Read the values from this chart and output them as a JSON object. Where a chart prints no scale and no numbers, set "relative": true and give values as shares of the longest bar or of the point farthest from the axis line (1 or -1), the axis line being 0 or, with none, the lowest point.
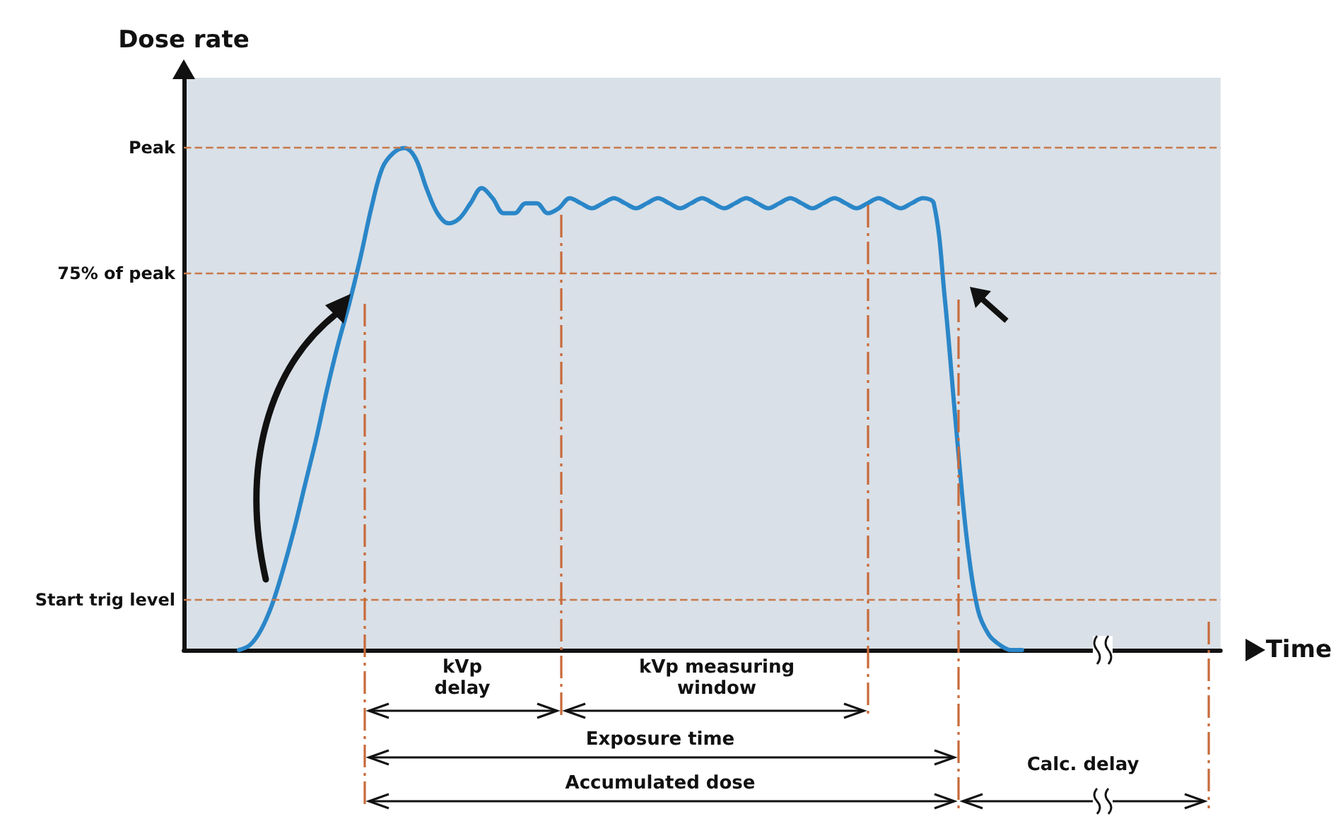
{
  "chart_data": {
    "type": "line",
    "relative": true,
    "xlabel": "Time",
    "ylabel": "Dose rate",
    "categories": [
      null,
      null,
      null,
      null,
      null,
      null,
      null,
      null,
      null,
      null,
      null,
      null,
      null,
      null,
      null,
      null,
      null,
      null,
      null,
      null,
      null,
      null,
      null,
      null,
      null,
      null,
      null,
      null,
      null,
      null,
      null,
      null,
      null,
      null,
      null,
      null,
      null,
      null,
      null,
      null,
      null,
      null,
      null,
      null,
      null,
      null,
      null,
      null,
      null,
      null,
      null,
      null,
      null,
      null,
      null,
      null,
      null,
      null,
      null,
      null,
      null,
      null,
      null,
      null,
      null,
      null,
      null,
      null,
      null,
      null,
      null,
      null,
      null,
      null,
      null,
      null,
      null,
      null,
      null,
      null,
      null,
      null,
      null,
      null,
      null,
      null,
      null,
      null,
      null,
      null,
      null,
      null,
      null,
      null,
      null
    ],
    "series": [
      {
        "color": "#2a86c8",
        "values": [
          null,
          null,
          null,
          null,
          null,
          0,
          0.01,
          0.04,
          0.09,
          0.16,
          0.24,
          0.33,
          0.42,
          0.52,
          0.61,
          0.69,
          0.78,
          0.88,
          0.96,
          0.99,
          1,
          0.98,
          0.92,
          0.87,
          0.85,
          0.86,
          0.89,
          0.92,
          0.9,
          0.87,
          0.87,
          0.89,
          0.89,
          0.87,
          0.88,
          0.9,
          0.89,
          0.88,
          0.89,
          0.9,
          0.89,
          0.88,
          0.89,
          0.9,
          0.89,
          0.88,
          0.89,
          0.9,
          0.89,
          0.88,
          0.89,
          0.9,
          0.89,
          0.88,
          0.89,
          0.9,
          0.89,
          0.88,
          0.89,
          0.9,
          0.89,
          0.88,
          0.89,
          0.9,
          0.89,
          0.88,
          0.89,
          0.9,
          0.89,
          0.7,
          0.45,
          0.22,
          0.08,
          0.03,
          0.01,
          0,
          0,
          null,
          null,
          null,
          null,
          null,
          null,
          null,
          null,
          null,
          null,
          null,
          null,
          null,
          null,
          null,
          null,
          null,
          null
        ]
      }
    ],
    "ref_lines": [
      {
        "axis": "y",
        "value": 1,
        "label": "Peak",
        "color": "#c8784a",
        "line_style": "dashed"
      },
      {
        "axis": "y",
        "value": 0.75,
        "label": "75% of peak",
        "color": "#c8784a",
        "line_style": "dashed"
      },
      {
        "axis": "y",
        "value": 0.1,
        "label": "Start trig level",
        "color": "#c8784a",
        "line_style": "dashed"
      }
    ],
    "annotations": [
      "kVp delay",
      "kVp measuring window",
      "Exposure time",
      "Accumulated dose",
      "Calc. delay"
    ],
    "marker": "none",
    "line_style": "solid"
  }
}
